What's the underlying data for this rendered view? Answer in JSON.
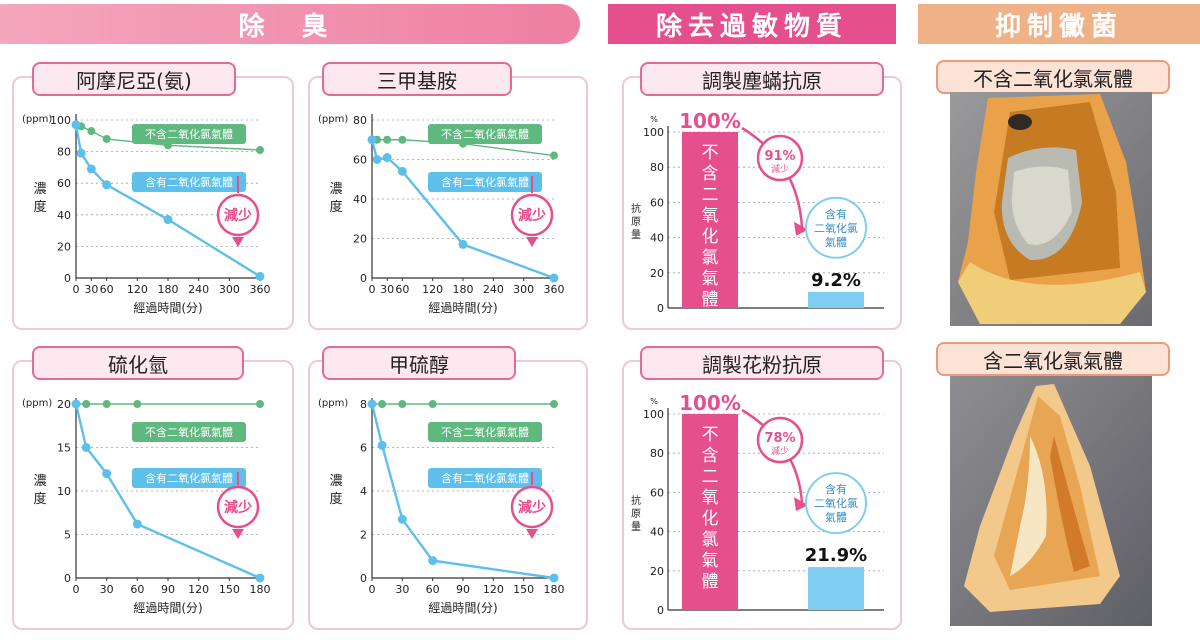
{
  "banners": {
    "deodor": "除 臭",
    "allergen": "除去過敏物質",
    "mold": "抑制黴菌"
  },
  "common": {
    "ylabel": "濃度",
    "xlabel": "經過時間(分)",
    "unit": "(ppm)",
    "without_label": "不含二氧化氯氣體",
    "with_label": "含有二氧化氯氣體",
    "reduce_badge": "減少"
  },
  "colors": {
    "without": "#5fb87d",
    "with": "#5ec0ea",
    "accent": "#e64f8d",
    "bar_pink": "#e64f8d",
    "bar_blue": "#7fcdf0"
  },
  "chart_data": [
    {
      "type": "line",
      "title": "阿摩尼亞(氨)",
      "xlabel": "經過時間(分)",
      "ylabel": "濃度",
      "unit": "(ppm)",
      "x_ticks": [
        0,
        30,
        60,
        120,
        180,
        240,
        300,
        360
      ],
      "y_ticks": [
        0,
        20,
        40,
        60,
        80,
        100
      ],
      "xlim": [
        0,
        360
      ],
      "ylim": [
        0,
        100
      ],
      "series": [
        {
          "name": "不含二氧化氯氣體",
          "x": [
            0,
            10,
            30,
            60,
            180,
            360
          ],
          "y": [
            97,
            96,
            93,
            88,
            84,
            81
          ]
        },
        {
          "name": "含有二氧化氯氣體",
          "x": [
            0,
            10,
            30,
            60,
            180,
            360
          ],
          "y": [
            97,
            79,
            69,
            59,
            37,
            1
          ]
        }
      ]
    },
    {
      "type": "line",
      "title": "三甲基胺",
      "xlabel": "經過時間(分)",
      "ylabel": "濃度",
      "unit": "(ppm)",
      "x_ticks": [
        0,
        30,
        60,
        120,
        180,
        240,
        300,
        360
      ],
      "y_ticks": [
        0,
        20,
        40,
        60,
        80
      ],
      "xlim": [
        0,
        360
      ],
      "ylim": [
        0,
        80
      ],
      "series": [
        {
          "name": "不含二氧化氯氣體",
          "x": [
            0,
            10,
            30,
            60,
            180,
            360
          ],
          "y": [
            70,
            70,
            70,
            70,
            68,
            62
          ]
        },
        {
          "name": "含有二氧化氯氣體",
          "x": [
            0,
            10,
            30,
            60,
            180,
            360
          ],
          "y": [
            70,
            60,
            61,
            54,
            17,
            0
          ]
        }
      ]
    },
    {
      "type": "line",
      "title": "硫化氫",
      "xlabel": "經過時間(分)",
      "ylabel": "濃度",
      "unit": "(ppm)",
      "x_ticks": [
        0,
        30,
        60,
        90,
        120,
        150,
        180
      ],
      "y_ticks": [
        0,
        5,
        10,
        15,
        20
      ],
      "xlim": [
        0,
        180
      ],
      "ylim": [
        0,
        20
      ],
      "series": [
        {
          "name": "不含二氧化氯氣體",
          "x": [
            0,
            10,
            30,
            60,
            180
          ],
          "y": [
            20,
            20,
            20,
            20,
            20
          ]
        },
        {
          "name": "含有二氧化氯氣體",
          "x": [
            0,
            10,
            30,
            60,
            180
          ],
          "y": [
            20,
            15,
            12,
            6.2,
            0
          ]
        }
      ]
    },
    {
      "type": "line",
      "title": "甲硫醇",
      "xlabel": "經過時間(分)",
      "ylabel": "濃度",
      "unit": "(ppm)",
      "x_ticks": [
        0,
        30,
        60,
        90,
        120,
        150,
        180
      ],
      "y_ticks": [
        0,
        2,
        4,
        6,
        8
      ],
      "xlim": [
        0,
        180
      ],
      "ylim": [
        0,
        8
      ],
      "series": [
        {
          "name": "不含二氧化氯氣體",
          "x": [
            0,
            10,
            30,
            60,
            180
          ],
          "y": [
            8,
            8,
            8,
            8,
            8
          ]
        },
        {
          "name": "含有二氧化氯氣體",
          "x": [
            0,
            10,
            30,
            60,
            180
          ],
          "y": [
            8,
            6.1,
            2.7,
            0.8,
            0
          ]
        }
      ]
    },
    {
      "type": "bar",
      "title": "調製塵蟎抗原",
      "ylabel": "抗原量",
      "unit": "%",
      "categories": [
        "不含二氧化氯氣體",
        "含有二氧化氯氣體"
      ],
      "values": [
        100,
        9.2
      ],
      "value_labels": [
        "100%",
        "9.2%"
      ],
      "y_ticks": [
        0,
        20,
        40,
        60,
        80,
        100
      ],
      "ylim": [
        0,
        100
      ],
      "reduction": "91%",
      "reduction_word": "減少"
    },
    {
      "type": "bar",
      "title": "調製花粉抗原",
      "ylabel": "抗原量",
      "unit": "%",
      "categories": [
        "不含二氧化氯氣體",
        "含有二氧化氯氣體"
      ],
      "values": [
        100,
        21.9
      ],
      "value_labels": [
        "100%",
        "21.9%"
      ],
      "y_ticks": [
        0,
        20,
        40,
        60,
        80,
        100
      ],
      "ylim": [
        0,
        100
      ],
      "reduction": "78%",
      "reduction_word": "減少"
    }
  ],
  "photos": [
    {
      "title": "不含二氧化氯氣體"
    },
    {
      "title": "含二氧化氯氣體"
    }
  ]
}
